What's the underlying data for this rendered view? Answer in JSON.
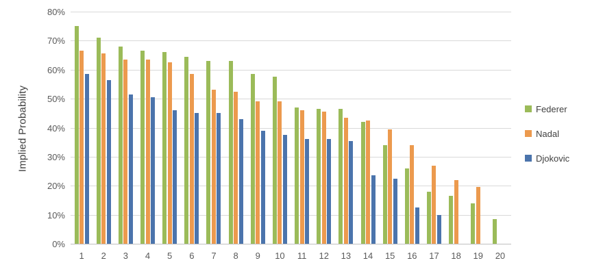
{
  "chart_data": {
    "type": "bar",
    "title": "",
    "xlabel": "",
    "ylabel": "Implied Probability",
    "categories": [
      "1",
      "2",
      "3",
      "4",
      "5",
      "6",
      "7",
      "8",
      "9",
      "10",
      "11",
      "12",
      "13",
      "14",
      "15",
      "16",
      "17",
      "18",
      "19",
      "20"
    ],
    "series": [
      {
        "name": "Federer",
        "color": "#9bbb59",
        "values": [
          75,
          71,
          68,
          66.5,
          66,
          64.5,
          63,
          63,
          58.5,
          57.5,
          47,
          46.5,
          46.5,
          42,
          34,
          26,
          18,
          16.5,
          14,
          8.5
        ]
      },
      {
        "name": "Nadal",
        "color": "#ec9a4e",
        "values": [
          66.5,
          65.5,
          63.5,
          63.5,
          62.5,
          58.5,
          53,
          52.5,
          49,
          49,
          46,
          45.5,
          43.5,
          42.5,
          39.5,
          34,
          27,
          22,
          19.5,
          0
        ]
      },
      {
        "name": "Djokovic",
        "color": "#4b74ac",
        "values": [
          58.5,
          56.5,
          51.5,
          50.5,
          46,
          45,
          45,
          43,
          39,
          37.5,
          36,
          36,
          35.5,
          23.5,
          22.5,
          12.5,
          10,
          0,
          0,
          0
        ]
      }
    ],
    "ylim": [
      0,
      80
    ],
    "y_tick_step": 10,
    "y_tick_labels": [
      "0%",
      "10%",
      "20%",
      "30%",
      "40%",
      "50%",
      "60%",
      "70%",
      "80%"
    ],
    "grid": true,
    "legend_position": "right",
    "colors": {
      "background": "#ffffff",
      "gridline": "#d9d9d9",
      "axis_line": "#bfbfbf",
      "tick_text": "#595959",
      "axis_title_text": "#404040",
      "legend_text": "#404040"
    }
  }
}
